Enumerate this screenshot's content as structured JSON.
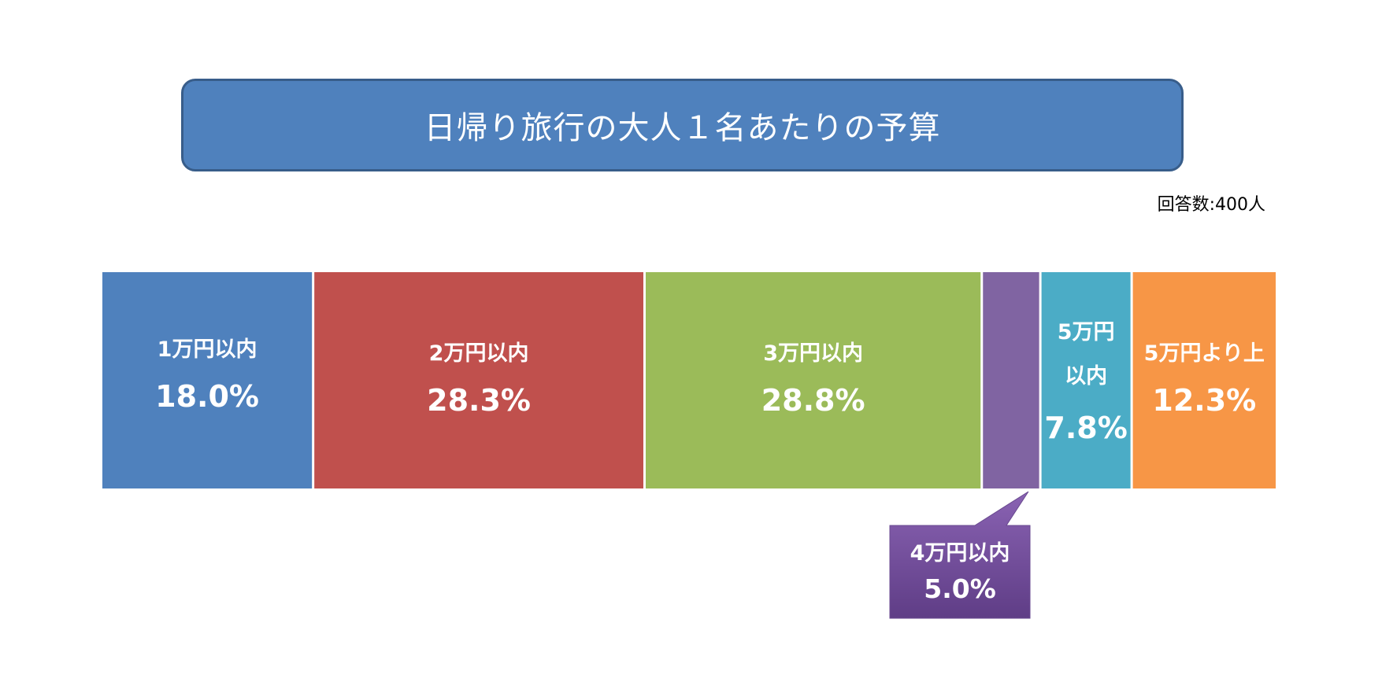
{
  "chart_data": {
    "type": "bar",
    "orientation": "horizontal-stacked-100",
    "title": "日帰り旅行の大人１名あたりの予算",
    "note": "回答数:400人",
    "categories": [
      "1万円以内",
      "2万円以内",
      "3万円以内",
      "4万円以内",
      "5万円以内",
      "5万円より上"
    ],
    "values": [
      18.0,
      28.3,
      28.8,
      5.0,
      7.8,
      12.3
    ],
    "value_labels": [
      "18.0%",
      "28.3%",
      "28.8%",
      "5.0%",
      "7.8%",
      "12.3%"
    ],
    "category_lines": [
      [
        "1万円以内"
      ],
      [
        "2万円以内"
      ],
      [
        "3万円以内"
      ],
      [
        "4万円以内"
      ],
      [
        "5万円",
        "以内"
      ],
      [
        "5万円より上"
      ]
    ],
    "callout_index": 3,
    "colors": [
      "#4f81bd",
      "#c0504d",
      "#9bbb59",
      "#8064a2",
      "#4bacc6",
      "#f79646"
    ],
    "callout_color": "#7b56a0",
    "legend": "none",
    "grid": false
  }
}
